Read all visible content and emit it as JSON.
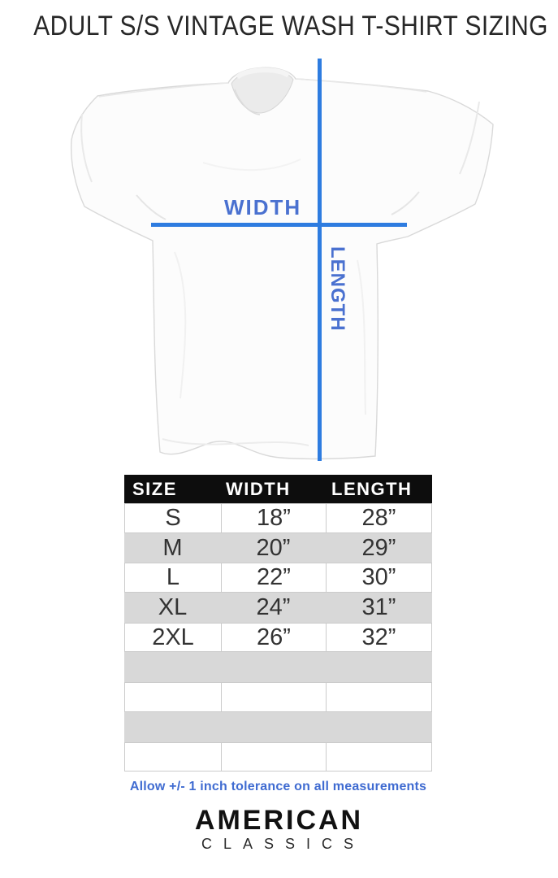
{
  "title": "ADULT S/S VINTAGE WASH T-SHIRT SIZING",
  "diagram": {
    "width_label": "WIDTH",
    "length_label": "LENGTH"
  },
  "table": {
    "headers": [
      "SIZE",
      "WIDTH",
      "LENGTH"
    ],
    "rows": [
      {
        "size": "S",
        "width": "18”",
        "length": "28”"
      },
      {
        "size": "M",
        "width": "20”",
        "length": "29”"
      },
      {
        "size": "L",
        "width": "22”",
        "length": "30”"
      },
      {
        "size": "XL",
        "width": "24”",
        "length": "31”"
      },
      {
        "size": "2XL",
        "width": "26”",
        "length": "32”"
      }
    ],
    "empty_rows": 4
  },
  "note": "Allow +/- 1 inch tolerance on all measurements",
  "brand": {
    "name": "AMERICAN",
    "subname": "CLASSICS"
  },
  "colors": {
    "measure_line": "#2e7ce0",
    "measure_label": "#4a71d0",
    "note_text": "#3f6bd1",
    "table_header_bg": "#0d0d0d",
    "table_alt_row": "#d8d8d8",
    "cell_border": "#cbcbcb"
  }
}
